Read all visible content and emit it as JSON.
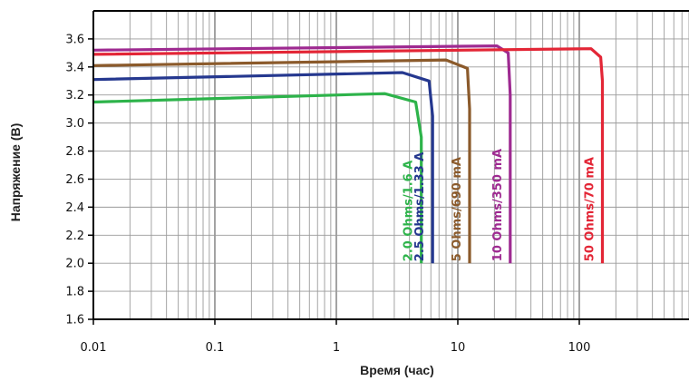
{
  "chart_data": {
    "type": "line",
    "xlabel": "Время (час)",
    "ylabel": "Напряжение (В)",
    "x_scale": "log",
    "xlim": [
      0.01,
      800
    ],
    "ylim": [
      1.6,
      3.8
    ],
    "x_ticks": [
      {
        "value": 0.01,
        "label": "0.01"
      },
      {
        "value": 0.1,
        "label": "0.1"
      },
      {
        "value": 1,
        "label": "1"
      },
      {
        "value": 10,
        "label": "10"
      },
      {
        "value": 100,
        "label": "100"
      }
    ],
    "y_ticks": [
      {
        "value": 1.6,
        "label": "1.6"
      },
      {
        "value": 1.8,
        "label": "1.8"
      },
      {
        "value": 2.0,
        "label": "2.0"
      },
      {
        "value": 2.2,
        "label": "2.2"
      },
      {
        "value": 2.4,
        "label": "2.4"
      },
      {
        "value": 2.6,
        "label": "2.6"
      },
      {
        "value": 2.8,
        "label": "2.8"
      },
      {
        "value": 3.0,
        "label": "3.0"
      },
      {
        "value": 3.2,
        "label": "3.2"
      },
      {
        "value": 3.4,
        "label": "3.4"
      },
      {
        "value": 3.6,
        "label": "3.6"
      }
    ],
    "grid": true,
    "series": [
      {
        "name": "2.0 Ohms/1.6 A",
        "color": "#2db34a",
        "points": [
          [
            0.01,
            3.15
          ],
          [
            2.5,
            3.21
          ],
          [
            4.5,
            3.15
          ],
          [
            5.0,
            2.9
          ],
          [
            5.0,
            2.0
          ]
        ]
      },
      {
        "name": "2.5 Ohms/1.33 A",
        "color": "#25388f",
        "points": [
          [
            0.01,
            3.31
          ],
          [
            3.5,
            3.36
          ],
          [
            5.8,
            3.3
          ],
          [
            6.2,
            3.05
          ],
          [
            6.2,
            2.0
          ]
        ]
      },
      {
        "name": "5 Ohms/690 mA",
        "color": "#8b5a2b",
        "points": [
          [
            0.01,
            3.41
          ],
          [
            8.0,
            3.45
          ],
          [
            12.0,
            3.39
          ],
          [
            12.5,
            3.1
          ],
          [
            12.5,
            2.0
          ]
        ]
      },
      {
        "name": "10 Ohms/350 mA",
        "color": "#9e2a91",
        "points": [
          [
            0.01,
            3.52
          ],
          [
            21.0,
            3.55
          ],
          [
            26.0,
            3.5
          ],
          [
            27.0,
            3.2
          ],
          [
            27.0,
            2.0
          ]
        ]
      },
      {
        "name": "50 Ohms/70 mA",
        "color": "#e32636",
        "points": [
          [
            0.01,
            3.49
          ],
          [
            125.0,
            3.53
          ],
          [
            150.0,
            3.47
          ],
          [
            155.0,
            3.3
          ],
          [
            155.0,
            2.0
          ]
        ]
      }
    ]
  }
}
